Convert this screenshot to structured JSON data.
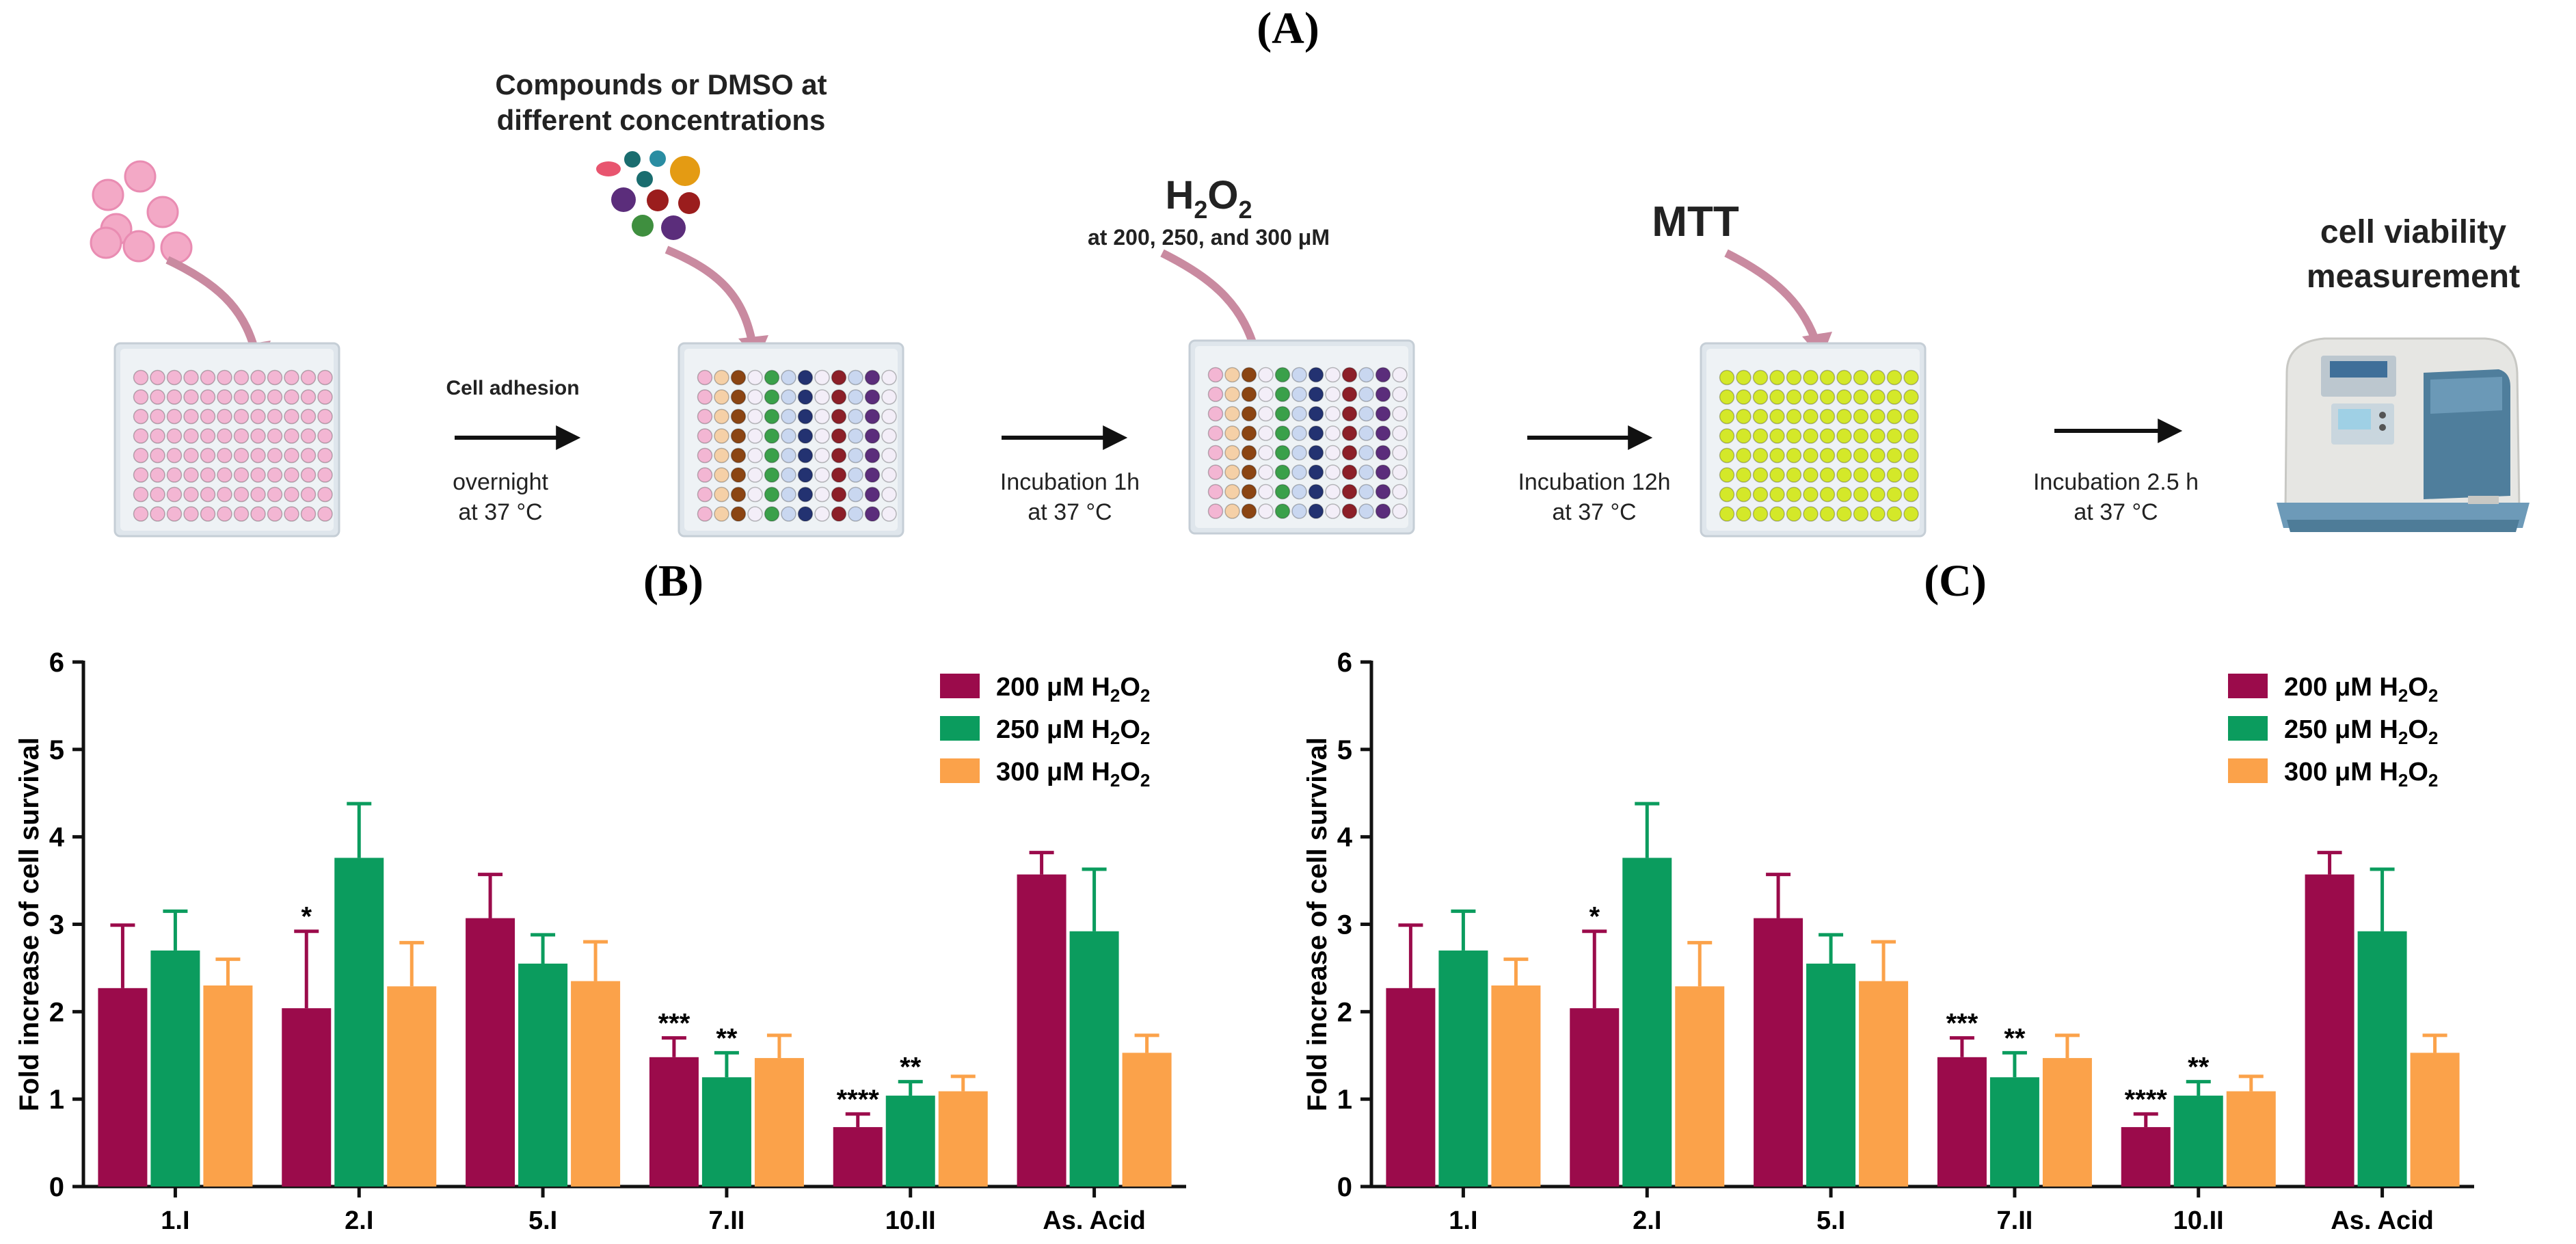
{
  "figure": {
    "panel_a_label": "(A)",
    "panel_b_label": "(B)",
    "panel_c_label": "(C)"
  },
  "workflow": {
    "step1": {
      "top": "Cell adhesion",
      "bottom1": "overnight",
      "bottom2": "at 37 °C"
    },
    "compounds": {
      "line1": "Compounds or DMSO at",
      "line2": "different concentrations"
    },
    "step2": {
      "bottom1": "Incubation 1h",
      "bottom2": "at 37 °C"
    },
    "h2o2": {
      "title_h": "H",
      "title_sub1": "2",
      "title_o": "O",
      "title_sub2": "2",
      "subtitle": "at 200, 250, and 300 μM"
    },
    "step3": {
      "bottom1": "Incubation 12h",
      "bottom2": "at 37 °C"
    },
    "mtt": {
      "title": "MTT"
    },
    "step4": {
      "bottom1": "Incubation 2.5 h",
      "bottom2": "at 37 °C"
    },
    "viability": {
      "line1": "cell viability",
      "line2": "measurement"
    },
    "colors": {
      "pink": "#f3b6d3",
      "peach": "#f5d0a7",
      "brown": "#8b4513",
      "green": "#3aa04a",
      "navy": "#233271",
      "maroon": "#8c1f28",
      "lightblue": "#c9d7f0",
      "purple": "#5b2d7b",
      "white_well": "#f3eef8",
      "yellow": "#d4e829",
      "plate": "#dfe6ec"
    }
  },
  "chart_data": [
    {
      "type": "bar",
      "panel": "(B)",
      "ylabel": "Fold increase of cell survival",
      "ylim": [
        0,
        6
      ],
      "yticks": [
        "0",
        "1",
        "2",
        "3",
        "4",
        "5",
        "6"
      ],
      "categories": [
        "1.I",
        "2.I",
        "5.I",
        "7.II",
        "10.II",
        "As. Acid"
      ],
      "series": [
        {
          "name": "200 μM H2O2",
          "label_main": "200 μM H",
          "sub1": "2",
          "mid": "O",
          "sub2": "2",
          "color": "#9b0b4b",
          "values": [
            2.27,
            2.04,
            3.07,
            1.48,
            0.68,
            3.57
          ],
          "errors": [
            0.72,
            0.88,
            0.5,
            0.22,
            0.15,
            0.25
          ]
        },
        {
          "name": "250 μM H2O2",
          "label_main": "250 μM H",
          "sub1": "2",
          "mid": "O",
          "sub2": "2",
          "color": "#0b9c5e",
          "values": [
            2.7,
            3.76,
            2.55,
            1.25,
            1.04,
            2.92
          ],
          "errors": [
            0.45,
            0.62,
            0.33,
            0.28,
            0.16,
            0.71
          ]
        },
        {
          "name": "300 μM H2O2",
          "label_main": "300 μM H",
          "sub1": "2",
          "mid": "O",
          "sub2": "2",
          "color": "#fba24a",
          "values": [
            2.3,
            2.29,
            2.35,
            1.47,
            1.09,
            1.53
          ],
          "errors": [
            0.3,
            0.5,
            0.45,
            0.26,
            0.17,
            0.2
          ]
        }
      ],
      "annotations": [
        {
          "category": 1,
          "series": 0,
          "text": "*"
        },
        {
          "category": 3,
          "series": 0,
          "text": "***"
        },
        {
          "category": 3,
          "series": 1,
          "text": "**"
        },
        {
          "category": 4,
          "series": 0,
          "text": "****"
        },
        {
          "category": 4,
          "series": 1,
          "text": "**"
        }
      ],
      "legend_position": "top-right"
    },
    {
      "type": "bar",
      "panel": "(C)",
      "ylabel": "Fold increase of cell survival",
      "ylim": [
        0,
        6
      ],
      "yticks": [
        "0",
        "1",
        "2",
        "3",
        "4",
        "5",
        "6"
      ],
      "categories": [
        "1.I",
        "2.I",
        "5.I",
        "7.II",
        "10.II",
        "As. Acid"
      ],
      "series": [
        {
          "name": "200 μM H2O2",
          "label_main": "200 μM H",
          "sub1": "2",
          "mid": "O",
          "sub2": "2",
          "color": "#9b0b4b",
          "values": [
            2.27,
            2.04,
            3.07,
            1.48,
            0.68,
            3.57
          ],
          "errors": [
            0.72,
            0.88,
            0.5,
            0.22,
            0.15,
            0.25
          ]
        },
        {
          "name": "250 μM H2O2",
          "label_main": "250 μM H",
          "sub1": "2",
          "mid": "O",
          "sub2": "2",
          "color": "#0b9c5e",
          "values": [
            2.7,
            3.76,
            2.55,
            1.25,
            1.04,
            2.92
          ],
          "errors": [
            0.45,
            0.62,
            0.33,
            0.28,
            0.16,
            0.71
          ]
        },
        {
          "name": "300 μM H2O2",
          "label_main": "300 μM H",
          "sub1": "2",
          "mid": "O",
          "sub2": "2",
          "color": "#fba24a",
          "values": [
            2.3,
            2.29,
            2.35,
            1.47,
            1.09,
            1.53
          ],
          "errors": [
            0.3,
            0.5,
            0.45,
            0.26,
            0.17,
            0.2
          ]
        }
      ],
      "annotations": [
        {
          "category": 1,
          "series": 0,
          "text": "*"
        },
        {
          "category": 3,
          "series": 0,
          "text": "***"
        },
        {
          "category": 3,
          "series": 1,
          "text": "**"
        },
        {
          "category": 4,
          "series": 0,
          "text": "****"
        },
        {
          "category": 4,
          "series": 1,
          "text": "**"
        }
      ],
      "legend_position": "top-right"
    }
  ]
}
